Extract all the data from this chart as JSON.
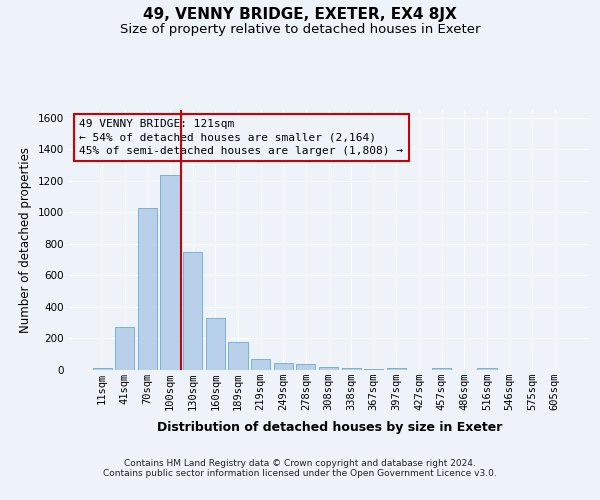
{
  "title": "49, VENNY BRIDGE, EXETER, EX4 8JX",
  "subtitle": "Size of property relative to detached houses in Exeter",
  "xlabel": "Distribution of detached houses by size in Exeter",
  "ylabel": "Number of detached properties",
  "footer_line1": "Contains HM Land Registry data © Crown copyright and database right 2024.",
  "footer_line2": "Contains public sector information licensed under the Open Government Licence v3.0.",
  "bar_labels": [
    "11sqm",
    "41sqm",
    "70sqm",
    "100sqm",
    "130sqm",
    "160sqm",
    "189sqm",
    "219sqm",
    "249sqm",
    "278sqm",
    "308sqm",
    "338sqm",
    "367sqm",
    "397sqm",
    "427sqm",
    "457sqm",
    "486sqm",
    "516sqm",
    "546sqm",
    "575sqm",
    "605sqm"
  ],
  "bar_values": [
    10,
    270,
    1030,
    1240,
    750,
    330,
    180,
    70,
    45,
    37,
    20,
    15,
    8,
    15,
    0,
    12,
    0,
    13,
    0,
    0,
    0
  ],
  "bar_color": "#b8d0ea",
  "bar_edgecolor": "#6aaad4",
  "vline_x": 3.5,
  "vline_color": "#cc0000",
  "annotation_line1": "49 VENNY BRIDGE: 121sqm",
  "annotation_line2": "← 54% of detached houses are smaller (2,164)",
  "annotation_line3": "45% of semi-detached houses are larger (1,808) →",
  "annotation_box_edgecolor": "#cc0000",
  "ylim": [
    0,
    1650
  ],
  "yticks": [
    0,
    200,
    400,
    600,
    800,
    1000,
    1200,
    1400,
    1600
  ],
  "bg_color": "#eef2f9",
  "grid_color": "#ffffff",
  "title_fontsize": 11,
  "subtitle_fontsize": 9.5,
  "ylabel_fontsize": 8.5,
  "xlabel_fontsize": 9,
  "tick_fontsize": 7.5,
  "annotation_fontsize": 8,
  "footer_fontsize": 6.5
}
